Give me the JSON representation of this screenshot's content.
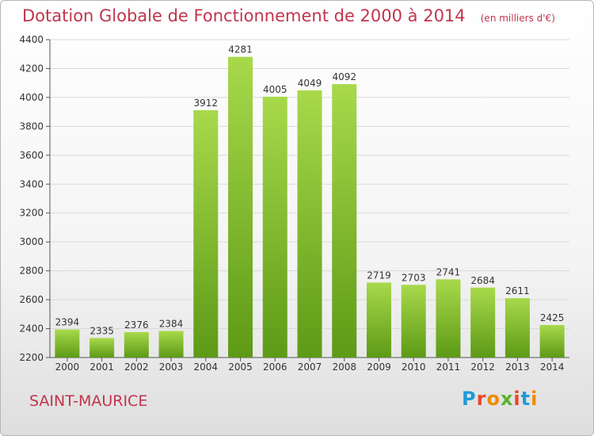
{
  "title": "Dotation Globale de Fonctionnement de 2000 à 2014",
  "unit_note": "(en milliers d'€)",
  "commune": "SAINT-MAURICE",
  "logo": {
    "text": "Proxiti",
    "colors": [
      "#1f9bd7",
      "#e9462a",
      "#f08a00",
      "#58b32c",
      "#e9462a",
      "#1f9bd7",
      "#f08a00"
    ]
  },
  "colors": {
    "title": "#c0354e",
    "bar_top": "#a8d94b",
    "bar_bottom": "#5d9a16"
  },
  "chart_data": {
    "type": "bar",
    "categories": [
      "2000",
      "2001",
      "2002",
      "2003",
      "2004",
      "2005",
      "2006",
      "2007",
      "2008",
      "2009",
      "2010",
      "2011",
      "2012",
      "2013",
      "2014"
    ],
    "values": [
      2394,
      2335,
      2376,
      2384,
      3912,
      4281,
      4005,
      4049,
      4092,
      2719,
      2703,
      2741,
      2684,
      2611,
      2425
    ],
    "ylim": [
      2200,
      4400
    ],
    "yticks": [
      2200,
      2400,
      2600,
      2800,
      3000,
      3200,
      3400,
      3600,
      3800,
      4000,
      4200,
      4400
    ],
    "grid": true
  }
}
